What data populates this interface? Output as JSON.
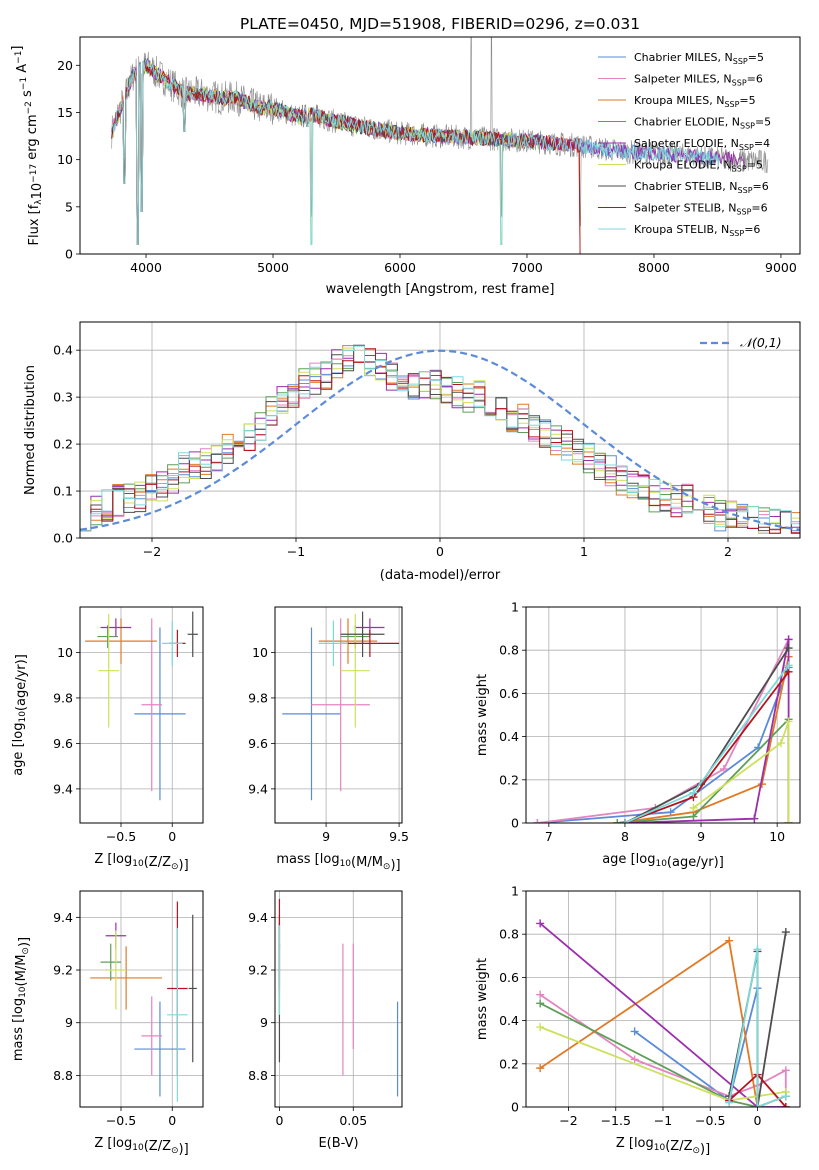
{
  "colors": {
    "s0": "#5b8bd9",
    "s1": "#e484c0",
    "s2": "#e07a27",
    "s3": "#5f9e59",
    "s4": "#9b2fad",
    "s5": "#cde05c",
    "s6": "#4d4d4d",
    "s7": "#b3141e",
    "s8": "#7fd8d8",
    "normal": "#5b8bd9"
  },
  "series_names": [
    "Chabrier MILES, N<sub>SSP</sub>=5",
    "Salpeter MILES, N<sub>SSP</sub>=6",
    "Kroupa MILES, N<sub>SSP</sub>=5",
    "Chabrier ELODIE, N<sub>SSP</sub>=5",
    "Salpeter ELODIE, N<sub>SSP</sub>=4",
    "Kroupa ELODIE, N<sub>SSP</sub>=5",
    "Chabrier STELIB, N<sub>SSP</sub>=6",
    "Salpeter STELIB, N<sub>SSP</sub>=6",
    "Kroupa STELIB, N<sub>SSP</sub>=6"
  ],
  "chart_data": [
    {
      "id": "spectrum",
      "type": "line",
      "title": "PLATE=0450, MJD=51908, FIBERID=0296, z=0.031",
      "xlabel": "wavelength [Angstrom, rest frame]",
      "ylabel": "Flux [f_λ10^-17 erg cm^-2 s^-1 A^-1]",
      "xlim": [
        3480,
        9150
      ],
      "ylim": [
        0,
        23
      ],
      "xticks": [
        4000,
        5000,
        6000,
        7000,
        8000,
        9000
      ],
      "yticks": [
        0,
        5,
        10,
        15,
        20
      ],
      "grid": false,
      "legend": "top-right",
      "data_continuum": [
        [
          3730,
          13
        ],
        [
          3800,
          15.5
        ],
        [
          3900,
          19
        ],
        [
          4000,
          20
        ],
        [
          4100,
          19
        ],
        [
          4200,
          18
        ],
        [
          4300,
          17
        ],
        [
          4400,
          17
        ],
        [
          4500,
          16.8
        ],
        [
          4600,
          16.5
        ],
        [
          4700,
          16.6
        ],
        [
          4800,
          16
        ],
        [
          4900,
          15.5
        ],
        [
          5000,
          15.5
        ],
        [
          5100,
          15
        ],
        [
          5200,
          14.5
        ],
        [
          5300,
          14.8
        ],
        [
          5500,
          14
        ],
        [
          5700,
          13.5
        ],
        [
          6000,
          12.8
        ],
        [
          6300,
          12.5
        ],
        [
          6600,
          12.3
        ],
        [
          7000,
          12
        ],
        [
          7400,
          11.5
        ],
        [
          7800,
          10.8
        ],
        [
          8200,
          10.5
        ],
        [
          8600,
          10
        ],
        [
          8900,
          9.8
        ]
      ],
      "model_range_A": [
        3730,
        7420
      ],
      "absorption_lines": [
        [
          3830,
          7.5
        ],
        [
          3933,
          1
        ],
        [
          3968,
          4.5
        ],
        [
          4305,
          13
        ],
        [
          5270,
          13.5
        ],
        [
          5300,
          1
        ],
        [
          6800,
          1
        ],
        [
          7420,
          0
        ]
      ],
      "emission_spikes": [
        [
          6560,
          23
        ],
        [
          6720,
          23
        ]
      ]
    },
    {
      "id": "residuals",
      "type": "histogram",
      "xlabel": "(data-model)/error",
      "ylabel": "Normed distribution",
      "xlim": [
        -2.5,
        2.5
      ],
      "ylim": [
        0,
        0.46
      ],
      "xticks": [
        -2,
        -1,
        0,
        1,
        2
      ],
      "yticks": [
        0.0,
        0.1,
        0.2,
        0.3,
        0.4
      ],
      "grid": true,
      "legend": "top-right",
      "legend_label": "𝒩(0,1)",
      "bin_width": 0.1,
      "base_profile": [
        0.05,
        0.06,
        0.07,
        0.08,
        0.08,
        0.09,
        0.1,
        0.11,
        0.13,
        0.15,
        0.15,
        0.16,
        0.17,
        0.19,
        0.2,
        0.22,
        0.24,
        0.27,
        0.29,
        0.31,
        0.33,
        0.34,
        0.35,
        0.37,
        0.38,
        0.39,
        0.38,
        0.36,
        0.34,
        0.33,
        0.33,
        0.32,
        0.33,
        0.32,
        0.31,
        0.3,
        0.3,
        0.28,
        0.27,
        0.26,
        0.25,
        0.23,
        0.22,
        0.21,
        0.2,
        0.18,
        0.17,
        0.15,
        0.14,
        0.12,
        0.11,
        0.1,
        0.09,
        0.09,
        0.08,
        0.08,
        0.07,
        0.06,
        0.05,
        0.05,
        0.04,
        0.04,
        0.03,
        0.03,
        0.03,
        0.02
      ]
    },
    {
      "id": "age_vs_Z",
      "type": "errorbar",
      "xlabel": "Z [log10(Z/Z⊙)]",
      "ylabel": "age [log10(age/yr)]",
      "xlim": [
        -0.9,
        0.3
      ],
      "ylim": [
        9.25,
        10.2
      ],
      "xticks": [
        -0.5,
        0.0
      ],
      "yticks": [
        9.4,
        9.6,
        9.8,
        10.0
      ],
      "grid": true,
      "points": [
        {
          "s": 0,
          "x": -0.12,
          "xe": 0.25,
          "y": 9.73,
          "ye": 0.38
        },
        {
          "s": 1,
          "x": -0.2,
          "xe": 0.1,
          "y": 9.77,
          "ye": 0.38
        },
        {
          "s": 2,
          "x": -0.5,
          "xe": 0.35,
          "y": 10.05,
          "ye": 0.1
        },
        {
          "s": 3,
          "x": -0.63,
          "xe": 0.1,
          "y": 10.07,
          "ye": 0.05
        },
        {
          "s": 4,
          "x": -0.55,
          "xe": 0.15,
          "y": 10.11,
          "ye": 0.04
        },
        {
          "s": 5,
          "x": -0.62,
          "xe": 0.1,
          "y": 9.92,
          "ye": 0.25
        },
        {
          "s": 6,
          "x": 0.2,
          "xe": 0.05,
          "y": 10.08,
          "ye": 0.1
        },
        {
          "s": 7,
          "x": 0.05,
          "xe": 0.08,
          "y": 10.04,
          "ye": 0.06
        },
        {
          "s": 8,
          "x": 0.0,
          "xe": 0.1,
          "y": 10.04,
          "ye": 0.1
        }
      ]
    },
    {
      "id": "age_vs_mass",
      "type": "errorbar",
      "xlabel": "mass [log10(M/M⊙)]",
      "ylabel": "",
      "xlim": [
        8.65,
        9.52
      ],
      "ylim": [
        9.25,
        10.2
      ],
      "xticks": [
        9.0,
        9.5
      ],
      "yticks": [
        9.4,
        9.6,
        9.8,
        10.0
      ],
      "grid": true,
      "points": [
        {
          "s": 0,
          "x": 8.9,
          "xe": 0.2,
          "y": 9.73,
          "ye": 0.38
        },
        {
          "s": 1,
          "x": 9.1,
          "xe": 0.2,
          "y": 9.77,
          "ye": 0.38
        },
        {
          "s": 2,
          "x": 9.15,
          "xe": 0.2,
          "y": 10.05,
          "ye": 0.1
        },
        {
          "s": 3,
          "x": 9.2,
          "xe": 0.1,
          "y": 10.07,
          "ye": 0.05
        },
        {
          "s": 4,
          "x": 9.3,
          "xe": 0.1,
          "y": 10.11,
          "ye": 0.04
        },
        {
          "s": 5,
          "x": 9.2,
          "xe": 0.1,
          "y": 9.92,
          "ye": 0.25
        },
        {
          "s": 6,
          "x": 9.25,
          "xe": 0.15,
          "y": 10.08,
          "ye": 0.1
        },
        {
          "s": 7,
          "x": 9.3,
          "xe": 0.2,
          "y": 10.04,
          "ye": 0.06
        },
        {
          "s": 8,
          "x": 9.05,
          "xe": 0.1,
          "y": 10.04,
          "ye": 0.1
        }
      ]
    },
    {
      "id": "weight_vs_age",
      "type": "line",
      "xlabel": "age [log10(age/yr)]",
      "ylabel": "mass weight",
      "xlim": [
        6.7,
        10.3
      ],
      "ylim": [
        0,
        1.0
      ],
      "xticks": [
        7,
        8,
        9,
        10
      ],
      "yticks": [
        0.0,
        0.2,
        0.4,
        0.6,
        0.8,
        1.0
      ],
      "grid": true,
      "series": [
        {
          "s": 0,
          "x": [
            6.85,
            8.6,
            9.75,
            10.15
          ],
          "y": [
            0.0,
            0.05,
            0.35,
            0.72
          ]
        },
        {
          "s": 1,
          "x": 6.85,
          "xx": [
            6.85,
            8.4,
            9.3,
            10.15
          ],
          "y": [
            0.0,
            0.07,
            0.25,
            0.85
          ]
        },
        {
          "s": 2,
          "x": [
            7.9,
            8.9,
            9.8,
            10.15
          ],
          "y": [
            0.0,
            0.05,
            0.18,
            0.77
          ]
        },
        {
          "s": 3,
          "x": [
            7.9,
            8.9,
            10.15,
            10.15
          ],
          "y": [
            0.0,
            0.03,
            0.48,
            0.0
          ]
        },
        {
          "s": 4,
          "x": [
            8.0,
            9.7,
            10.15,
            10.15
          ],
          "y": [
            0.0,
            0.02,
            0.85,
            0.0
          ]
        },
        {
          "s": 5,
          "x": [
            8.9,
            10.05,
            10.15,
            10.15
          ],
          "y": [
            0.07,
            0.37,
            0.47,
            0.0
          ]
        },
        {
          "s": 6,
          "x": [
            8.0,
            9.0,
            10.15
          ],
          "y": [
            0.0,
            0.18,
            0.81
          ]
        },
        {
          "s": 7,
          "x": [
            8.0,
            8.9,
            10.15
          ],
          "y": [
            0.0,
            0.12,
            0.7
          ]
        },
        {
          "s": 8,
          "x": [
            8.0,
            8.9,
            10.15
          ],
          "y": [
            0.0,
            0.14,
            0.73
          ]
        }
      ]
    },
    {
      "id": "mass_vs_Z",
      "type": "errorbar",
      "xlabel": "Z [log10(Z/Z⊙)]",
      "ylabel": "mass [log10(M/M⊙)]",
      "xlim": [
        -0.9,
        0.3
      ],
      "ylim": [
        8.68,
        9.5
      ],
      "xticks": [
        -0.5,
        0.0
      ],
      "yticks": [
        8.8,
        9.0,
        9.2,
        9.4
      ],
      "grid": true,
      "points": [
        {
          "s": 0,
          "x": -0.12,
          "xe": 0.25,
          "y": 8.9,
          "ye": 0.18
        },
        {
          "s": 1,
          "x": -0.2,
          "xe": 0.1,
          "y": 8.95,
          "ye": 0.15
        },
        {
          "s": 2,
          "x": -0.45,
          "xe": 0.35,
          "y": 9.17,
          "ye": 0.12
        },
        {
          "s": 3,
          "x": -0.6,
          "xe": 0.1,
          "y": 9.23,
          "ye": 0.07
        },
        {
          "s": 4,
          "x": -0.55,
          "xe": 0.1,
          "y": 9.33,
          "ye": 0.05
        },
        {
          "s": 5,
          "x": -0.55,
          "xe": 0.1,
          "y": 9.2,
          "ye": 0.15
        },
        {
          "s": 6,
          "x": 0.2,
          "xe": 0.04,
          "y": 9.13,
          "ye": 0.28
        },
        {
          "s": 7,
          "x": 0.05,
          "xe": 0.1,
          "y": 9.13,
          "ye": 0.33
        },
        {
          "s": 8,
          "x": 0.05,
          "xe": 0.1,
          "y": 9.03,
          "ye": 0.33
        }
      ]
    },
    {
      "id": "mass_vs_EBV",
      "type": "errorbar",
      "xlabel": "E(B-V)",
      "ylabel": "",
      "xlim": [
        -0.003,
        0.083
      ],
      "ylim": [
        8.68,
        9.5
      ],
      "xticks": [
        0.0,
        0.05
      ],
      "yticks": [
        8.8,
        9.0,
        9.2,
        9.4
      ],
      "grid": true,
      "points": [
        {
          "s": 0,
          "x": 0.08,
          "xe": 0,
          "y": 8.9,
          "ye": 0.18
        },
        {
          "s": 1,
          "x": 0.043,
          "xe": 0,
          "y": 9.05,
          "ye": 0.25
        },
        {
          "s": 2,
          "x": 0.0,
          "xe": 0,
          "y": 9.2,
          "ye": 0.1
        },
        {
          "s": 3,
          "x": 0.0,
          "xe": 0,
          "y": 9.23,
          "ye": 0.07
        },
        {
          "s": 4,
          "x": 0.0,
          "xe": 0,
          "y": 9.33,
          "ye": 0.05
        },
        {
          "s": 5,
          "x": 0.0,
          "xe": 0,
          "y": 9.2,
          "ye": 0.15
        },
        {
          "s": 6,
          "x": 0.0,
          "xe": 0,
          "y": 9.13,
          "ye": 0.28
        },
        {
          "s": 7,
          "x": 0.0,
          "xe": 0,
          "y": 9.3,
          "ye": 0.17
        },
        {
          "s": 8,
          "x": 0.0,
          "xe": 0,
          "y": 9.2,
          "ye": 0.17
        },
        {
          "s": 1,
          "x": 0.05,
          "xe": 0,
          "y": 9.1,
          "ye": 0.2
        }
      ]
    },
    {
      "id": "weight_vs_Z",
      "type": "line",
      "xlabel": "Z [log10(Z/Z⊙)]",
      "ylabel": "mass weight",
      "xlim": [
        -2.45,
        0.45
      ],
      "ylim": [
        0,
        1.0
      ],
      "xticks": [
        -2.0,
        -1.5,
        -1.0,
        -0.5,
        0.0
      ],
      "yticks": [
        0.0,
        0.2,
        0.4,
        0.6,
        0.8,
        1.0
      ],
      "grid": true,
      "series": [
        {
          "s": 0,
          "x": [
            -1.3,
            -0.3,
            0.0,
            0.0
          ],
          "y": [
            0.35,
            0.03,
            0.55,
            0.0
          ]
        },
        {
          "s": 1,
          "x": [
            -2.3,
            -1.3,
            -0.3,
            0.0,
            0.3,
            0.3
          ],
          "y": [
            0.52,
            0.22,
            0.05,
            0.1,
            0.17,
            0.05
          ]
        },
        {
          "s": 2,
          "x": [
            -2.3,
            -0.3,
            0.0,
            0.3
          ],
          "y": [
            0.18,
            0.77,
            0.0,
            0.05
          ]
        },
        {
          "s": 3,
          "x": [
            -2.3,
            -0.3,
            0.0,
            0.3
          ],
          "y": [
            0.48,
            0.03,
            0.0,
            0.05
          ]
        },
        {
          "s": 4,
          "x": [
            -2.3,
            0.0,
            0.3
          ],
          "y": [
            0.85,
            0.0,
            0.0
          ]
        },
        {
          "s": 5,
          "x": [
            -2.3,
            -0.3,
            0.0,
            0.3
          ],
          "y": [
            0.37,
            0.03,
            0.05,
            0.07
          ]
        },
        {
          "s": 6,
          "x": [
            -0.3,
            0.0,
            0.0,
            0.3
          ],
          "y": [
            0.05,
            0.72,
            0.0,
            0.81
          ]
        },
        {
          "s": 7,
          "x": [
            -0.3,
            0.0,
            0.3
          ],
          "y": [
            0.03,
            0.15,
            0.0
          ]
        },
        {
          "s": 8,
          "x": [
            -0.3,
            0.0,
            0.0,
            0.3
          ],
          "y": [
            0.02,
            0.73,
            0.0,
            0.05
          ]
        }
      ]
    }
  ]
}
